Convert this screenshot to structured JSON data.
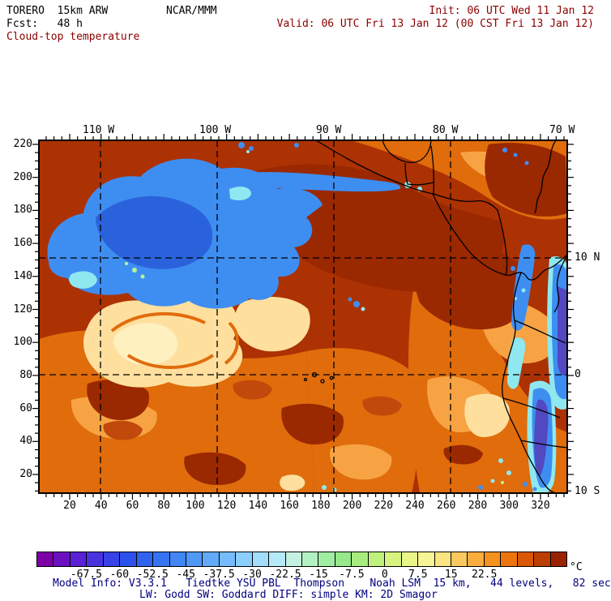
{
  "header": {
    "model": "TORERO  15km ARW",
    "center": "NCAR/MMM",
    "init": "Init: 06 UTC Wed 11 Jan 12",
    "fcst": "Fcst:   48 h",
    "valid": "Valid: 06 UTC Fri 13 Jan 12 (00 CST Fri 13 Jan 12)",
    "field_title": "Cloud-top temperature"
  },
  "map": {
    "axes": {
      "top_labels": [
        "110 W",
        "100 W",
        "90 W",
        "80 W",
        "70 W"
      ],
      "right_labels": [
        "10 N",
        "0",
        "10 S"
      ],
      "left_labels": [
        "220",
        "200",
        "180",
        "160",
        "140",
        "120",
        "100",
        "80",
        "60",
        "40",
        "20"
      ],
      "bottom_labels": [
        "20",
        "40",
        "60",
        "80",
        "100",
        "120",
        "140",
        "160",
        "180",
        "200",
        "220",
        "240",
        "260",
        "280",
        "300",
        "320"
      ]
    },
    "grid": "dashed lat-lon lines at 110W,100W,90W,80W and 10N,0"
  },
  "colorbar": {
    "unit": "°C",
    "tick_labels": [
      "-67.5",
      "-60",
      "-52.5",
      "-45",
      "-37.5",
      "-30",
      "-22.5",
      "-15",
      "-7.5",
      "0",
      "7.5",
      "15",
      "22.5"
    ],
    "tick_step_c": 7.5,
    "cell_colors": [
      "#7D00A6",
      "#6A10C0",
      "#5A22D4",
      "#4833DF",
      "#3743E6",
      "#2C52EB",
      "#2F63EE",
      "#3674F1",
      "#4186F4",
      "#5098F6",
      "#62AAF8",
      "#76BCFA",
      "#8CCEFB",
      "#A2DDFC",
      "#B6EAF8",
      "#C4F0E2",
      "#B4F1C2",
      "#A0EDA2",
      "#96E88B",
      "#A8EC80",
      "#C0F17C",
      "#D8F480",
      "#EAF689",
      "#F8F596",
      "#FBE482",
      "#F9C95F",
      "#F8AD3C",
      "#F4911F",
      "#EA750E",
      "#D95705",
      "#BC3E02",
      "#992300"
    ]
  },
  "model_info": {
    "line1": "Model Info: V3.3.1   Tiedtke YSU PBL  Thompson    Noah LSM  15 km,   44 levels,   82 sec",
    "line2": "LW: Godd SW: Goddard DIFF: simple KM: 2D Smagor"
  },
  "colors": {
    "header_accent": "#8b0000",
    "model_info_text": "#000080",
    "map_background": "#AC3103",
    "map_dark_patch": "#9A2800",
    "map_orange": "#E06C0C",
    "map_light_orange": "#F7A344",
    "map_pale_yellow": "#FFDF9E",
    "map_cloud_blue": "#3E8EF2",
    "map_cloud_blue_dark": "#2A62DC",
    "map_cloud_cyan": "#8FE8F0",
    "map_cloud_purple": "#5248C0"
  }
}
